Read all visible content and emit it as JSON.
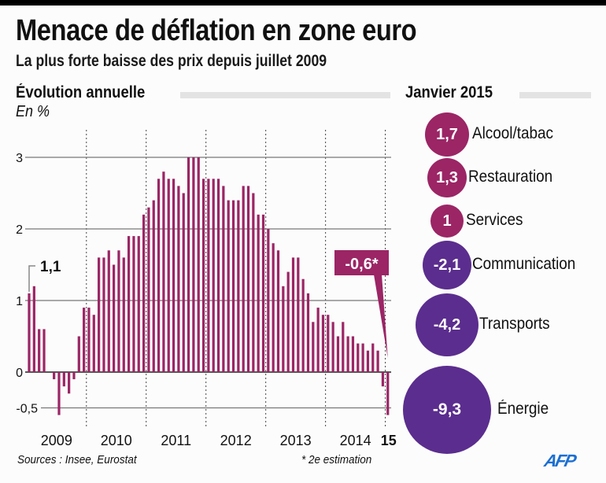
{
  "header": {
    "title": "Menace de déflation en zone euro",
    "subtitle": "La plus forte baisse des prix depuis juillet 2009"
  },
  "left_section": {
    "title": "Évolution annuelle",
    "unit": "En %"
  },
  "right_section": {
    "title": "Janvier 2015"
  },
  "colors": {
    "positive": "#9b2565",
    "negative": "#5b2d8e",
    "bars": "#9b2565",
    "afp": "#1b6fd1"
  },
  "chart_data": [
    {
      "type": "bar",
      "title": "Évolution annuelle",
      "ylabel": "En %",
      "ylim": [
        -0.6,
        3.3
      ],
      "yticks": [
        3,
        2,
        1,
        0,
        -0.5
      ],
      "ytick_labels": [
        "3",
        "2",
        "1",
        "0",
        "-0,5"
      ],
      "grid": true,
      "period": "monthly, Jan 2009 – Jan 2015",
      "x_group_labels": [
        "2009",
        "2010",
        "2011",
        "2012",
        "2013",
        "2014",
        "15"
      ],
      "values": [
        1.1,
        1.2,
        0.6,
        0.6,
        0.0,
        -0.1,
        -0.6,
        -0.2,
        -0.3,
        -0.1,
        0.5,
        0.9,
        0.9,
        0.8,
        1.6,
        1.6,
        1.7,
        1.5,
        1.7,
        1.6,
        1.9,
        1.9,
        1.9,
        2.2,
        2.3,
        2.4,
        2.7,
        2.8,
        2.7,
        2.7,
        2.6,
        2.5,
        3.0,
        3.0,
        3.0,
        2.7,
        2.7,
        2.7,
        2.7,
        2.6,
        2.4,
        2.4,
        2.4,
        2.6,
        2.6,
        2.5,
        2.2,
        2.2,
        2.0,
        1.8,
        1.7,
        1.2,
        1.4,
        1.6,
        1.6,
        1.3,
        1.1,
        0.7,
        0.9,
        0.8,
        0.8,
        0.7,
        0.5,
        0.7,
        0.5,
        0.5,
        0.4,
        0.4,
        0.3,
        0.4,
        0.3,
        -0.2,
        -0.6
      ],
      "annotations": [
        {
          "label": "1,1",
          "index": 0
        },
        {
          "label": "-0,6*",
          "index": 72
        }
      ]
    },
    {
      "type": "bubble",
      "title": "Janvier 2015",
      "categories": [
        "Alcool/tabac",
        "Restauration",
        "Services",
        "Communication",
        "Transports",
        "Énergie"
      ],
      "values": [
        1.7,
        1.3,
        1.0,
        -2.1,
        -4.2,
        -9.3
      ],
      "value_labels": [
        "1,7",
        "1,3",
        "1",
        "-2,1",
        "-4,2",
        "-9,3"
      ]
    }
  ],
  "bubbles": [
    {
      "value": "1,7",
      "label": "Alcool/tabac",
      "sign": "positive"
    },
    {
      "value": "1,3",
      "label": "Restauration",
      "sign": "positive"
    },
    {
      "value": "1",
      "label": "Services",
      "sign": "positive"
    },
    {
      "value": "-2,1",
      "label": "Communication",
      "sign": "negative"
    },
    {
      "value": "-4,2",
      "label": "Transports",
      "sign": "negative"
    },
    {
      "value": "-9,3",
      "label": "Énergie",
      "sign": "negative"
    }
  ],
  "footer": {
    "sources": "Sources : Insee, Eurostat",
    "note": "* 2e estimation",
    "logo": "AFP"
  }
}
